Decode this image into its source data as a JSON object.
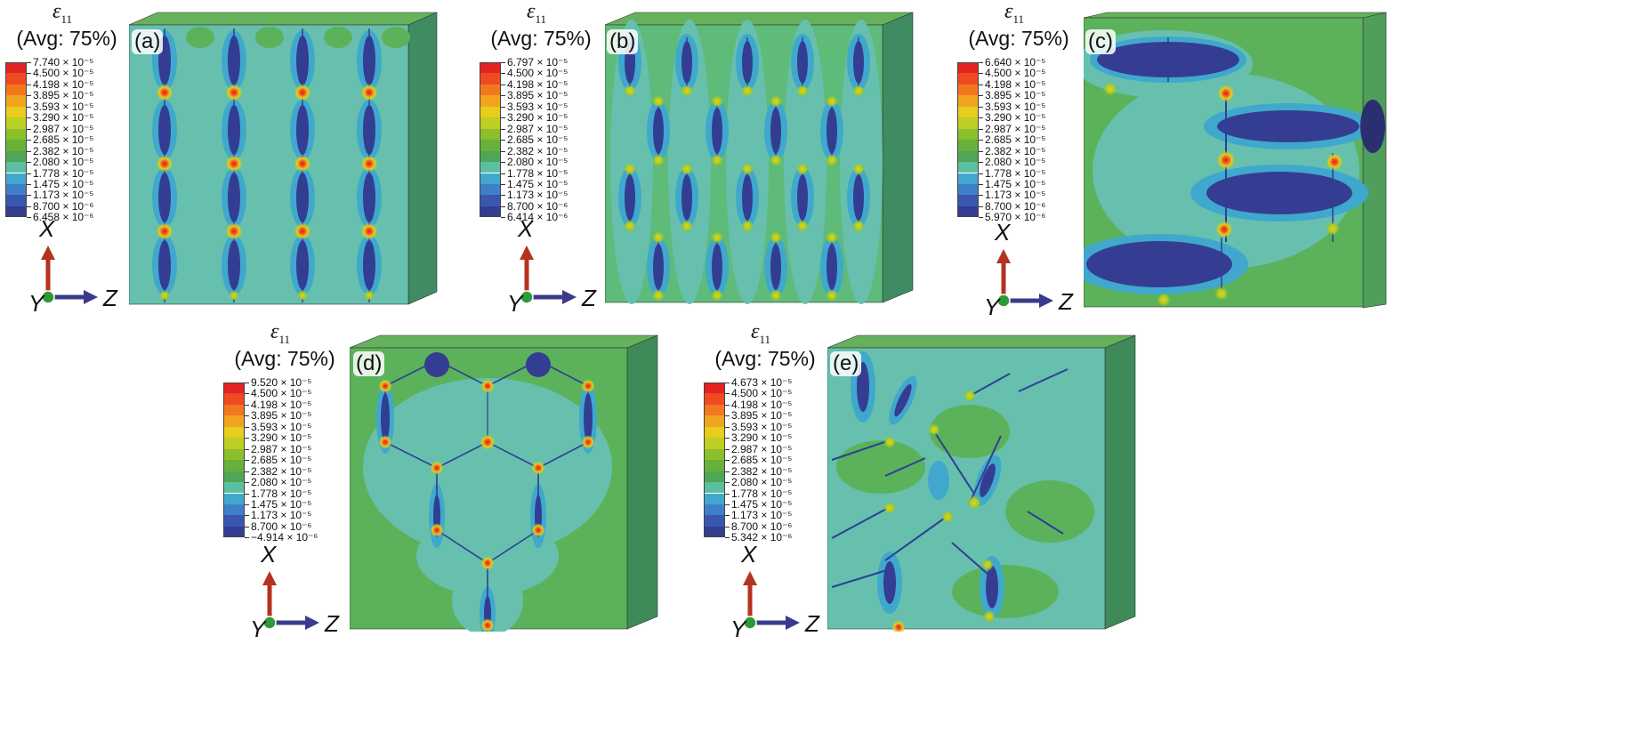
{
  "legend_title": "ε",
  "legend_subscript": "11",
  "legend_avg": "(Avg: 75%)",
  "axes": {
    "x": "X",
    "y": "Y",
    "z": "Z"
  },
  "colors": {
    "legend_swatches": [
      "#e32222",
      "#ef4a22",
      "#f1781f",
      "#f2a41f",
      "#e8cd1f",
      "#bccf23",
      "#8cbf2c",
      "#67b03a",
      "#4fa656",
      "#5cbfa2",
      "#40a8cc",
      "#3f7fc8",
      "#3a57b0",
      "#343d92"
    ],
    "field_base_a": "#66c0ad",
    "field_base_b": "#58b358",
    "side_face": "#3e8a58",
    "top_face": "#5fb060",
    "crack_core": "#2d3f96",
    "hot_spot": "#e62020"
  },
  "panels": [
    {
      "label": "(a)",
      "values": [
        "7.740 × 10⁻⁵",
        "4.500 × 10⁻⁵",
        "4.198 × 10⁻⁵",
        "3.895 × 10⁻⁵",
        "3.593 × 10⁻⁵",
        "3.290 × 10⁻⁵",
        "2.987 × 10⁻⁵",
        "2.685 × 10⁻⁵",
        "2.382 × 10⁻⁵",
        "2.080 × 10⁻⁵",
        "1.778 × 10⁻⁵",
        "1.475 × 10⁻⁵",
        "1.173 × 10⁻⁵",
        "8.700 × 10⁻⁶",
        "6.458 × 10⁻⁶"
      ]
    },
    {
      "label": "(b)",
      "values": [
        "6.797 × 10⁻⁵",
        "4.500 × 10⁻⁵",
        "4.198 × 10⁻⁵",
        "3.895 × 10⁻⁵",
        "3.593 × 10⁻⁵",
        "3.290 × 10⁻⁵",
        "2.987 × 10⁻⁵",
        "2.685 × 10⁻⁵",
        "2.382 × 10⁻⁵",
        "2.080 × 10⁻⁵",
        "1.778 × 10⁻⁵",
        "1.475 × 10⁻⁵",
        "1.173 × 10⁻⁵",
        "8.700 × 10⁻⁶",
        "6.414 × 10⁻⁶"
      ]
    },
    {
      "label": "(c)",
      "values": [
        "6.640 × 10⁻⁵",
        "4.500 × 10⁻⁵",
        "4.198 × 10⁻⁵",
        "3.895 × 10⁻⁵",
        "3.593 × 10⁻⁵",
        "3.290 × 10⁻⁵",
        "2.987 × 10⁻⁵",
        "2.685 × 10⁻⁵",
        "2.382 × 10⁻⁵",
        "2.080 × 10⁻⁵",
        "1.778 × 10⁻⁵",
        "1.475 × 10⁻⁵",
        "1.173 × 10⁻⁵",
        "8.700 × 10⁻⁶",
        "5.970 × 10⁻⁶"
      ]
    },
    {
      "label": "(d)",
      "values": [
        "9.520 × 10⁻⁵",
        "4.500 × 10⁻⁵",
        "4.198 × 10⁻⁵",
        "3.895 × 10⁻⁵",
        "3.593 × 10⁻⁵",
        "3.290 × 10⁻⁵",
        "2.987 × 10⁻⁵",
        "2.685 × 10⁻⁵",
        "2.382 × 10⁻⁵",
        "2.080 × 10⁻⁵",
        "1.778 × 10⁻⁵",
        "1.475 × 10⁻⁵",
        "1.173 × 10⁻⁵",
        "8.700 × 10⁻⁶",
        "−4.914 × 10⁻⁶"
      ]
    },
    {
      "label": "(e)",
      "values": [
        "4.673 × 10⁻⁵",
        "4.500 × 10⁻⁵",
        "4.198 × 10⁻⁵",
        "3.895 × 10⁻⁵",
        "3.593 × 10⁻⁵",
        "3.290 × 10⁻⁵",
        "2.987 × 10⁻⁵",
        "2.685 × 10⁻⁵",
        "2.382 × 10⁻⁵",
        "2.080 × 10⁻⁵",
        "1.778 × 10⁻⁵",
        "1.475 × 10⁻⁵",
        "1.173 × 10⁻⁵",
        "8.700 × 10⁻⁶",
        "5.342 × 10⁻⁶"
      ]
    }
  ]
}
